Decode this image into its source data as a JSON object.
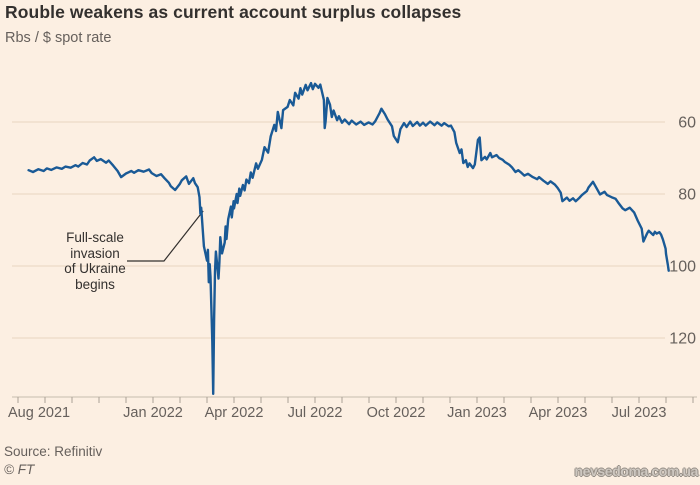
{
  "header": {
    "title": "Rouble weakens as current account surplus collapses",
    "subtitle": "Rbs / $ spot rate"
  },
  "annotation": {
    "lines": [
      "Full-scale",
      "invasion",
      "of Ukraine",
      "begins"
    ]
  },
  "footer": {
    "source": "Source: Refinitiv",
    "copyright": "© FT",
    "watermark": "nevsedoma.com.ua"
  },
  "colors": {
    "background": "#fcefe2",
    "line": "#1a5a96",
    "grid": "#ecdac7",
    "axis": "#c6bcae",
    "tick": "#aaa196",
    "text_secondary": "#66605c",
    "text_primary": "#33302e"
  },
  "chart_data": {
    "type": "line",
    "title": "Rouble weakens as current account surplus collapses",
    "unit": "Rbs / $ spot rate",
    "grid": true,
    "y_axis": {
      "inverted": true,
      "side": "right",
      "ticks": [
        {
          "value": 60,
          "label": "60"
        },
        {
          "value": 80,
          "label": "80"
        },
        {
          "value": 100,
          "label": "100"
        },
        {
          "value": 120,
          "label": "120"
        }
      ],
      "range_shown": [
        47,
        137
      ]
    },
    "x_axis": {
      "minor_ticks": "monthly",
      "range": [
        "2021-08",
        "2023-09"
      ],
      "labels": [
        {
          "label": "Aug 2021",
          "month_offset": 0,
          "anchor": "start"
        },
        {
          "label": "Jan 2022",
          "month_offset": 5,
          "anchor": "middle"
        },
        {
          "label": "Apr 2022",
          "month_offset": 8,
          "anchor": "middle"
        },
        {
          "label": "Jul 2022",
          "month_offset": 11,
          "anchor": "middle"
        },
        {
          "label": "Oct 2022",
          "month_offset": 14,
          "anchor": "middle"
        },
        {
          "label": "Jan 2023",
          "month_offset": 17,
          "anchor": "middle"
        },
        {
          "label": "Apr 2023",
          "month_offset": 20,
          "anchor": "middle"
        },
        {
          "label": "Jul 2023",
          "month_offset": 23,
          "anchor": "middle"
        }
      ]
    },
    "annotation": {
      "text": "Full-scale invasion of Ukraine begins",
      "points_to_date": "2022-02-25"
    },
    "series": [
      {
        "name": "Rbs per $ spot rate",
        "points": [
          [
            "2021-08-13",
            73.4
          ],
          [
            "2021-08-18",
            73.9
          ],
          [
            "2021-08-24",
            73.1
          ],
          [
            "2021-08-30",
            73.6
          ],
          [
            "2021-09-03",
            72.9
          ],
          [
            "2021-09-08",
            73.3
          ],
          [
            "2021-09-14",
            72.6
          ],
          [
            "2021-09-20",
            73.0
          ],
          [
            "2021-09-24",
            72.4
          ],
          [
            "2021-09-30",
            72.7
          ],
          [
            "2021-10-05",
            72.0
          ],
          [
            "2021-10-08",
            72.4
          ],
          [
            "2021-10-13",
            71.4
          ],
          [
            "2021-10-18",
            71.8
          ],
          [
            "2021-10-21",
            70.7
          ],
          [
            "2021-10-26",
            69.8
          ],
          [
            "2021-10-29",
            70.8
          ],
          [
            "2021-11-03",
            70.3
          ],
          [
            "2021-11-09",
            71.3
          ],
          [
            "2021-11-12",
            70.7
          ],
          [
            "2021-11-17",
            72.1
          ],
          [
            "2021-11-22",
            73.6
          ],
          [
            "2021-11-26",
            75.3
          ],
          [
            "2021-12-01",
            74.3
          ],
          [
            "2021-12-07",
            73.6
          ],
          [
            "2021-12-10",
            74.1
          ],
          [
            "2021-12-15",
            73.4
          ],
          [
            "2021-12-21",
            73.8
          ],
          [
            "2021-12-27",
            73.2
          ],
          [
            "2021-12-30",
            74.2
          ],
          [
            "2022-01-05",
            75.0
          ],
          [
            "2022-01-10",
            74.5
          ],
          [
            "2022-01-14",
            75.6
          ],
          [
            "2022-01-19",
            76.9
          ],
          [
            "2022-01-21",
            77.8
          ],
          [
            "2022-01-26",
            78.9
          ],
          [
            "2022-01-31",
            77.3
          ],
          [
            "2022-02-03",
            76.2
          ],
          [
            "2022-02-08",
            75.1
          ],
          [
            "2022-02-11",
            77.2
          ],
          [
            "2022-02-16",
            75.6
          ],
          [
            "2022-02-18",
            77.0
          ],
          [
            "2022-02-21",
            78.1
          ],
          [
            "2022-02-23",
            80.9
          ],
          [
            "2022-02-24",
            85.5
          ],
          [
            "2022-02-25",
            83.8
          ],
          [
            "2022-02-28",
            94.5
          ],
          [
            "2022-03-01",
            98.5
          ],
          [
            "2022-03-02",
            95.5
          ],
          [
            "2022-03-03",
            104.5
          ],
          [
            "2022-03-04",
            99.5
          ],
          [
            "2022-03-05",
            103.0
          ],
          [
            "2022-03-07",
            121.0
          ],
          [
            "2022-03-08",
            135.5
          ],
          [
            "2022-03-09",
            115.0
          ],
          [
            "2022-03-10",
            101.5
          ],
          [
            "2022-03-11",
            96.0
          ],
          [
            "2022-03-14",
            103.5
          ],
          [
            "2022-03-15",
            99.0
          ],
          [
            "2022-03-16",
            92.0
          ],
          [
            "2022-03-18",
            96.5
          ],
          [
            "2022-03-21",
            93.5
          ],
          [
            "2022-03-22",
            89.0
          ],
          [
            "2022-03-23",
            92.5
          ],
          [
            "2022-03-25",
            87.0
          ],
          [
            "2022-03-28",
            83.5
          ],
          [
            "2022-03-29",
            86.5
          ],
          [
            "2022-03-31",
            82.0
          ],
          [
            "2022-04-01",
            84.0
          ],
          [
            "2022-04-04",
            80.0
          ],
          [
            "2022-04-05",
            82.5
          ],
          [
            "2022-04-07",
            78.5
          ],
          [
            "2022-04-08",
            80.5
          ],
          [
            "2022-04-11",
            77.5
          ],
          [
            "2022-04-13",
            79.0
          ],
          [
            "2022-04-15",
            76.0
          ],
          [
            "2022-04-18",
            77.0
          ],
          [
            "2022-04-20",
            74.0
          ],
          [
            "2022-04-22",
            75.5
          ],
          [
            "2022-04-26",
            71.5
          ],
          [
            "2022-04-28",
            73.0
          ],
          [
            "2022-05-02",
            70.5
          ],
          [
            "2022-05-05",
            67.0
          ],
          [
            "2022-05-09",
            68.5
          ],
          [
            "2022-05-12",
            64.0
          ],
          [
            "2022-05-16",
            60.8
          ],
          [
            "2022-05-18",
            62.5
          ],
          [
            "2022-05-20",
            57.2
          ],
          [
            "2022-05-24",
            61.7
          ],
          [
            "2022-05-26",
            56.7
          ],
          [
            "2022-05-31",
            55.8
          ],
          [
            "2022-06-03",
            53.9
          ],
          [
            "2022-06-07",
            55.4
          ],
          [
            "2022-06-09",
            51.9
          ],
          [
            "2022-06-13",
            53.5
          ],
          [
            "2022-06-15",
            50.6
          ],
          [
            "2022-06-17",
            52.4
          ],
          [
            "2022-06-21",
            49.7
          ],
          [
            "2022-06-23",
            51.2
          ],
          [
            "2022-06-27",
            49.2
          ],
          [
            "2022-06-29",
            50.9
          ],
          [
            "2022-07-01",
            49.4
          ],
          [
            "2022-07-05",
            50.5
          ],
          [
            "2022-07-07",
            49.6
          ],
          [
            "2022-07-11",
            53.9
          ],
          [
            "2022-07-12",
            61.7
          ],
          [
            "2022-07-13",
            59.8
          ],
          [
            "2022-07-15",
            53.3
          ],
          [
            "2022-07-18",
            55.2
          ],
          [
            "2022-07-20",
            58.6
          ],
          [
            "2022-07-22",
            56.8
          ],
          [
            "2022-07-26",
            59.5
          ],
          [
            "2022-07-28",
            58.4
          ],
          [
            "2022-08-01",
            60.2
          ],
          [
            "2022-08-04",
            59.3
          ],
          [
            "2022-08-09",
            60.6
          ],
          [
            "2022-08-12",
            59.6
          ],
          [
            "2022-08-17",
            60.7
          ],
          [
            "2022-08-22",
            59.9
          ],
          [
            "2022-08-26",
            60.8
          ],
          [
            "2022-08-31",
            60.1
          ],
          [
            "2022-09-05",
            60.7
          ],
          [
            "2022-09-08",
            59.8
          ],
          [
            "2022-09-13",
            57.5
          ],
          [
            "2022-09-15",
            56.3
          ],
          [
            "2022-09-19",
            57.8
          ],
          [
            "2022-09-22",
            59.3
          ],
          [
            "2022-09-27",
            61.2
          ],
          [
            "2022-09-29",
            63.9
          ],
          [
            "2022-10-03",
            65.6
          ],
          [
            "2022-10-06",
            62.0
          ],
          [
            "2022-10-10",
            60.3
          ],
          [
            "2022-10-13",
            61.4
          ],
          [
            "2022-10-17",
            59.9
          ],
          [
            "2022-10-20",
            61.1
          ],
          [
            "2022-10-25",
            60.0
          ],
          [
            "2022-10-28",
            61.0
          ],
          [
            "2022-11-01",
            60.2
          ],
          [
            "2022-11-04",
            61.0
          ],
          [
            "2022-11-09",
            59.9
          ],
          [
            "2022-11-14",
            60.9
          ],
          [
            "2022-11-17",
            60.1
          ],
          [
            "2022-11-22",
            61.0
          ],
          [
            "2022-11-25",
            60.3
          ],
          [
            "2022-11-30",
            61.2
          ],
          [
            "2022-12-02",
            61.0
          ],
          [
            "2022-12-06",
            62.8
          ],
          [
            "2022-12-08",
            65.8
          ],
          [
            "2022-12-12",
            68.6
          ],
          [
            "2022-12-14",
            67.6
          ],
          [
            "2022-12-16",
            71.4
          ],
          [
            "2022-12-19",
            70.6
          ],
          [
            "2022-12-21",
            72.5
          ],
          [
            "2022-12-23",
            71.5
          ],
          [
            "2022-12-27",
            72.8
          ],
          [
            "2022-12-29",
            71.8
          ],
          [
            "2023-01-02",
            65.0
          ],
          [
            "2023-01-04",
            64.3
          ],
          [
            "2023-01-06",
            70.6
          ],
          [
            "2023-01-10",
            69.7
          ],
          [
            "2023-01-12",
            70.4
          ],
          [
            "2023-01-16",
            68.6
          ],
          [
            "2023-01-18",
            69.8
          ],
          [
            "2023-01-23",
            69.2
          ],
          [
            "2023-01-26",
            70.0
          ],
          [
            "2023-01-30",
            70.5
          ],
          [
            "2023-02-02",
            71.1
          ],
          [
            "2023-02-07",
            71.9
          ],
          [
            "2023-02-10",
            72.6
          ],
          [
            "2023-02-14",
            73.9
          ],
          [
            "2023-02-17",
            73.4
          ],
          [
            "2023-02-21",
            74.2
          ],
          [
            "2023-02-24",
            74.9
          ],
          [
            "2023-02-28",
            74.4
          ],
          [
            "2023-03-03",
            75.3
          ],
          [
            "2023-03-08",
            75.9
          ],
          [
            "2023-03-10",
            75.3
          ],
          [
            "2023-03-15",
            76.3
          ],
          [
            "2023-03-20",
            77.2
          ],
          [
            "2023-03-23",
            76.5
          ],
          [
            "2023-03-28",
            77.4
          ],
          [
            "2023-03-31",
            78.3
          ],
          [
            "2023-04-04",
            79.6
          ],
          [
            "2023-04-06",
            82.0
          ],
          [
            "2023-04-11",
            81.0
          ],
          [
            "2023-04-14",
            81.9
          ],
          [
            "2023-04-18",
            81.2
          ],
          [
            "2023-04-21",
            82.0
          ],
          [
            "2023-04-25",
            81.1
          ],
          [
            "2023-04-28",
            80.3
          ],
          [
            "2023-05-03",
            79.2
          ],
          [
            "2023-05-05",
            78.2
          ],
          [
            "2023-05-10",
            76.6
          ],
          [
            "2023-05-15",
            78.8
          ],
          [
            "2023-05-18",
            80.1
          ],
          [
            "2023-05-23",
            79.4
          ],
          [
            "2023-05-26",
            80.3
          ],
          [
            "2023-05-31",
            80.9
          ],
          [
            "2023-06-05",
            81.3
          ],
          [
            "2023-06-08",
            82.4
          ],
          [
            "2023-06-13",
            84.0
          ],
          [
            "2023-06-16",
            84.5
          ],
          [
            "2023-06-21",
            83.8
          ],
          [
            "2023-06-26",
            85.1
          ],
          [
            "2023-06-30",
            87.4
          ],
          [
            "2023-07-04",
            89.6
          ],
          [
            "2023-07-06",
            93.2
          ],
          [
            "2023-07-10",
            91.0
          ],
          [
            "2023-07-12",
            90.2
          ],
          [
            "2023-07-17",
            91.4
          ],
          [
            "2023-07-19",
            90.5
          ],
          [
            "2023-07-21",
            91.0
          ],
          [
            "2023-07-24",
            90.6
          ],
          [
            "2023-07-26",
            91.3
          ],
          [
            "2023-07-28",
            92.6
          ],
          [
            "2023-07-31",
            95.2
          ],
          [
            "2023-08-01",
            96.6
          ],
          [
            "2023-08-02",
            98.1
          ],
          [
            "2023-08-03",
            99.6
          ],
          [
            "2023-08-04",
            101.3
          ]
        ]
      }
    ]
  }
}
